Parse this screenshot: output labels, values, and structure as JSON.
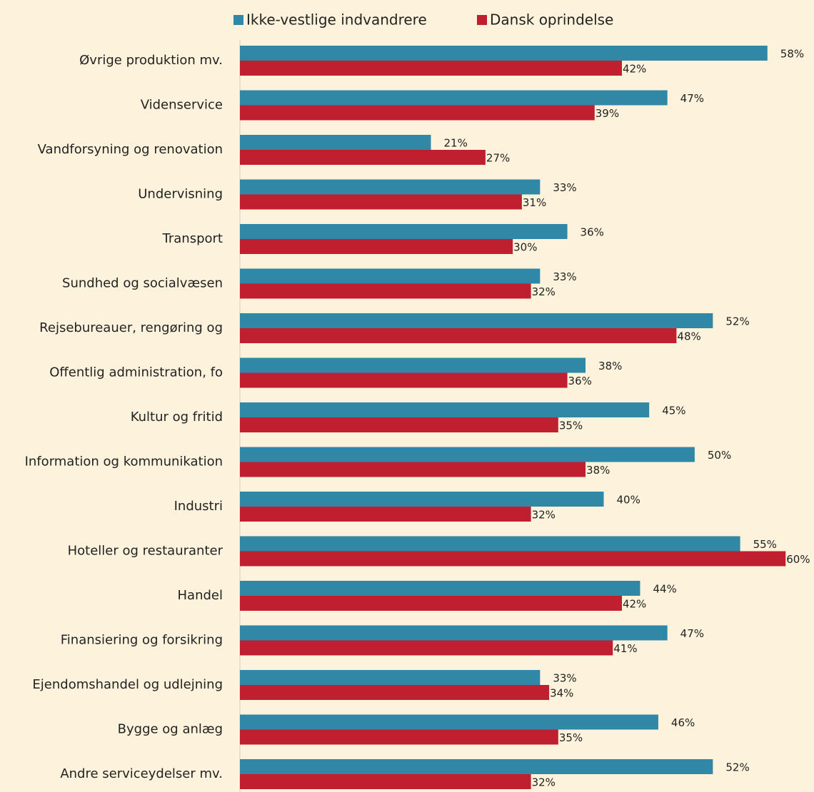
{
  "chart_data": {
    "type": "hbar",
    "categories": [
      "Øvrige produktion mv.",
      "Videnservice",
      "Vandforsyning og renovation",
      "Undervisning",
      "Transport",
      "Sundhed og socialvæsen",
      "Rejsebureauer, rengøring og",
      "Offentlig administration, fo",
      "Kultur og fritid",
      "Information og kommunikation",
      "Industri",
      "Hoteller og restauranter",
      "Handel",
      "Finansiering og forsikring",
      "Ejendomshandel og udlejning",
      "Bygge og anlæg",
      "Andre serviceydelser  mv."
    ],
    "series": [
      {
        "name": "Ikke-vestlige indvandrere",
        "color": "#3187a6",
        "values": [
          58,
          47,
          21,
          33,
          36,
          33,
          52,
          38,
          45,
          50,
          40,
          55,
          44,
          47,
          33,
          46,
          52
        ],
        "value_labels": [
          "58%",
          "47%",
          "21%",
          "33%",
          "36%",
          "33%",
          "52%",
          "38%",
          "45%",
          "50%",
          "40%",
          "55%",
          "44%",
          "47%",
          "33%",
          "46%",
          "52%"
        ]
      },
      {
        "name": "Dansk oprindelse",
        "color": "#c01f30",
        "values": [
          42,
          39,
          27,
          31,
          30,
          32,
          48,
          36,
          35,
          38,
          32,
          60,
          42,
          41,
          34,
          35,
          32
        ],
        "value_labels": [
          "42%",
          "39%",
          "27%",
          "31%",
          "30%",
          "32%",
          "48%",
          "36%",
          "35%",
          "38%",
          "32%",
          "60%",
          "42%",
          "41%",
          "34%",
          "35%",
          "32%"
        ]
      }
    ],
    "xlim": [
      0,
      61
    ],
    "legend": "top"
  }
}
